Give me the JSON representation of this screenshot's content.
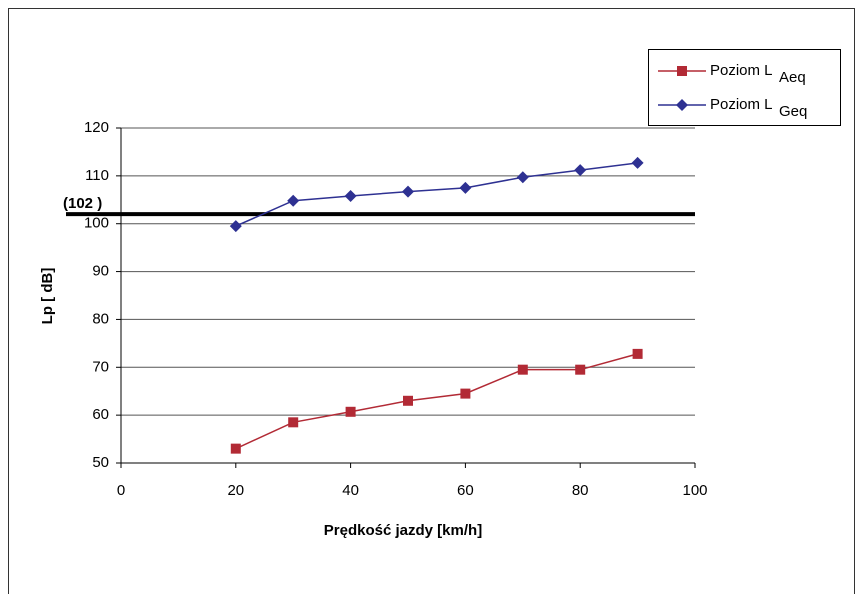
{
  "chart_data": {
    "type": "line",
    "x_label": "Prędkość jazdy [km/h]",
    "y_label": "Lp [ dB]",
    "xlim": [
      0,
      100
    ],
    "xticks": [
      0,
      20,
      40,
      60,
      80,
      100
    ],
    "ylim": [
      50,
      120
    ],
    "yticks": [
      50,
      60,
      70,
      80,
      90,
      100,
      110,
      120
    ],
    "grid": true,
    "legend": "top-right",
    "reference_line": {
      "value": 102,
      "label": "(102 )",
      "color": "#000000"
    },
    "x": [
      20,
      30,
      40,
      50,
      60,
      70,
      80,
      90
    ],
    "series": [
      {
        "name": "Poziom L",
        "subscript": "Aeq",
        "color": "#b22a35",
        "marker": "square",
        "values": [
          53,
          58.5,
          60.7,
          63,
          64.5,
          69.5,
          69.5,
          72.8
        ]
      },
      {
        "name": "Poziom L",
        "subscript": "Geq",
        "color": "#2e3192",
        "marker": "diamond",
        "values": [
          99.5,
          104.8,
          105.8,
          106.7,
          107.5,
          109.7,
          111.2,
          112.7
        ]
      }
    ]
  }
}
